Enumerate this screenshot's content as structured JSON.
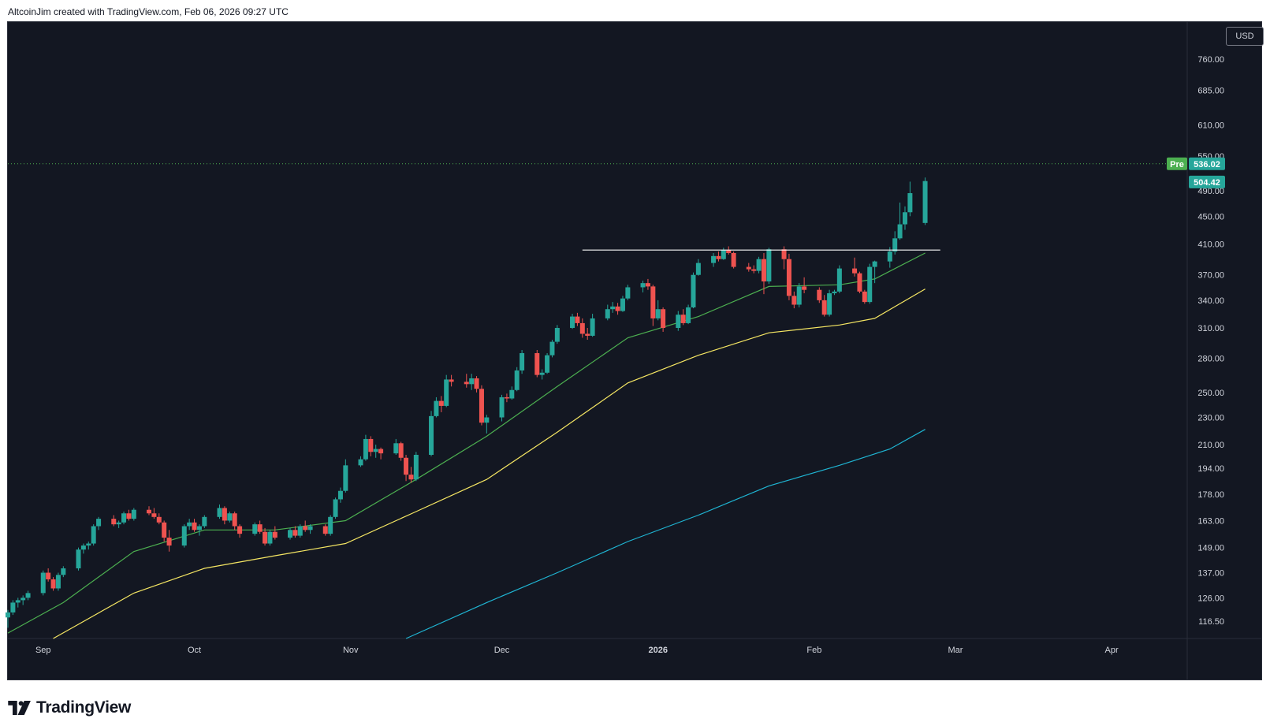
{
  "header": {
    "caption": "AltcoinJim created with TradingView.com, Feb 06, 2026 09:27 UTC"
  },
  "currency": "USD",
  "footer": {
    "brand": "TradingView",
    "icon": "tradingview-logo-icon"
  },
  "colors": {
    "background": "#131722",
    "up": "#26a69a",
    "down": "#ef5350",
    "ma_short": "#4caf50",
    "ma_mid": "#f5e663",
    "ma_long": "#1fb4d2",
    "resistance": "#ffffff",
    "axis_text": "#d1d4dc"
  },
  "chart_data": {
    "type": "candlestick",
    "scale": "log",
    "ylim": [
      110,
      860
    ],
    "y_ticks": [
      760,
      685,
      610,
      550,
      490,
      450,
      410,
      370,
      340,
      310,
      280,
      250,
      230,
      210,
      194,
      178,
      163,
      149,
      137,
      126,
      116.5
    ],
    "y_tick_labels": [
      "760.00",
      "685.00",
      "610.00",
      "550.00",
      "490.00",
      "450.00",
      "410.00",
      "370.00",
      "340.00",
      "310.00",
      "280.00",
      "250.00",
      "230.00",
      "210.00",
      "194.00",
      "178.00",
      "163.00",
      "149.00",
      "137.00",
      "126.00",
      "116.50"
    ],
    "x_labels": [
      {
        "label": "Sep",
        "date": "2025-09-01"
      },
      {
        "label": "Oct",
        "date": "2025-10-01"
      },
      {
        "label": "Nov",
        "date": "2025-11-01"
      },
      {
        "label": "Dec",
        "date": "2025-12-01"
      },
      {
        "label": "2026",
        "date": "2026-01-01"
      },
      {
        "label": "Feb",
        "date": "2026-02-01"
      },
      {
        "label": "Mar",
        "date": "2026-03-01"
      },
      {
        "label": "Apr",
        "date": "2026-04-01"
      }
    ],
    "x_range": [
      "2025-08-25",
      "2026-04-16"
    ],
    "candles": [
      [
        "2025-08-25",
        118,
        121,
        114,
        120
      ],
      [
        "2025-08-26",
        120,
        125,
        119,
        124
      ],
      [
        "2025-08-27",
        124,
        126,
        122,
        125
      ],
      [
        "2025-08-28",
        125,
        127,
        123,
        126
      ],
      [
        "2025-08-29",
        126,
        129,
        125,
        128
      ],
      [
        "2025-09-01",
        128,
        138,
        127,
        137
      ],
      [
        "2025-09-02",
        137,
        139,
        133,
        134
      ],
      [
        "2025-09-03",
        134,
        135,
        129,
        130
      ],
      [
        "2025-09-04",
        130,
        137,
        129,
        136
      ],
      [
        "2025-09-05",
        136,
        140,
        135,
        139
      ],
      [
        "2025-09-08",
        139,
        149,
        138,
        148
      ],
      [
        "2025-09-09",
        148,
        151,
        146,
        150
      ],
      [
        "2025-09-10",
        150,
        152,
        148,
        151
      ],
      [
        "2025-09-11",
        151,
        161,
        150,
        160
      ],
      [
        "2025-09-12",
        160,
        165,
        158,
        164
      ],
      [
        "2025-09-15",
        164,
        166,
        160,
        161
      ],
      [
        "2025-09-16",
        161,
        163,
        159,
        162
      ],
      [
        "2025-09-17",
        162,
        168,
        161,
        167
      ],
      [
        "2025-09-18",
        167,
        169,
        163,
        164
      ],
      [
        "2025-09-19",
        164,
        170,
        163,
        169
      ],
      [
        "2025-09-22",
        169,
        171,
        166,
        167
      ],
      [
        "2025-09-23",
        167,
        170,
        164,
        165
      ],
      [
        "2025-09-24",
        165,
        167,
        161,
        162
      ],
      [
        "2025-09-25",
        162,
        163,
        152,
        154
      ],
      [
        "2025-09-26",
        154,
        158,
        147,
        150
      ],
      [
        "2025-09-29",
        150,
        161,
        149,
        160
      ],
      [
        "2025-09-30",
        160,
        164,
        158,
        162
      ],
      [
        "2025-10-01",
        162,
        164,
        157,
        158
      ],
      [
        "2025-10-02",
        158,
        161,
        155,
        160
      ],
      [
        "2025-10-03",
        160,
        166,
        159,
        165
      ],
      [
        "2025-10-06",
        165,
        172,
        164,
        170
      ],
      [
        "2025-10-07",
        170,
        171,
        161,
        163
      ],
      [
        "2025-10-08",
        163,
        168,
        162,
        167
      ],
      [
        "2025-10-09",
        167,
        168,
        158,
        160
      ],
      [
        "2025-10-10",
        160,
        161,
        154,
        156
      ],
      [
        "2025-10-13",
        156,
        162,
        155,
        161
      ],
      [
        "2025-10-14",
        161,
        163,
        156,
        157
      ],
      [
        "2025-10-15",
        157,
        159,
        150,
        151
      ],
      [
        "2025-10-16",
        151,
        158,
        150,
        157
      ],
      [
        "2025-10-17",
        157,
        160,
        153,
        154
      ],
      [
        "2025-10-20",
        154,
        159,
        153,
        158
      ],
      [
        "2025-10-21",
        158,
        160,
        154,
        155
      ],
      [
        "2025-10-22",
        155,
        161,
        154,
        160
      ],
      [
        "2025-10-23",
        160,
        163,
        157,
        158
      ],
      [
        "2025-10-24",
        158,
        161,
        156,
        160
      ],
      [
        "2025-10-27",
        160,
        161,
        155,
        156
      ],
      [
        "2025-10-28",
        156,
        166,
        155,
        165
      ],
      [
        "2025-10-29",
        165,
        176,
        164,
        175
      ],
      [
        "2025-10-30",
        175,
        182,
        173,
        180
      ],
      [
        "2025-10-31",
        180,
        200,
        179,
        196
      ],
      [
        "2025-11-03",
        196,
        202,
        195,
        200
      ],
      [
        "2025-11-04",
        200,
        217,
        199,
        214
      ],
      [
        "2025-11-05",
        214,
        216,
        202,
        205
      ],
      [
        "2025-11-06",
        205,
        210,
        201,
        207
      ],
      [
        "2025-11-07",
        207,
        208,
        200,
        204
      ],
      [
        "2025-11-10",
        204,
        214,
        203,
        211
      ],
      [
        "2025-11-11",
        211,
        212,
        199,
        201
      ],
      [
        "2025-11-12",
        201,
        203,
        186,
        190
      ],
      [
        "2025-11-13",
        190,
        195,
        185,
        187
      ],
      [
        "2025-11-14",
        187,
        205,
        186,
        203
      ],
      [
        "2025-11-17",
        203,
        235,
        202,
        231
      ],
      [
        "2025-11-18",
        231,
        246,
        230,
        243
      ],
      [
        "2025-11-19",
        243,
        247,
        234,
        239
      ],
      [
        "2025-11-20",
        239,
        265,
        238,
        261
      ],
      [
        "2025-11-21",
        261,
        265,
        255,
        259
      ],
      [
        "2025-11-24",
        259,
        266,
        254,
        257
      ],
      [
        "2025-11-25",
        257,
        266,
        252,
        262
      ],
      [
        "2025-11-26",
        262,
        264,
        250,
        253
      ],
      [
        "2025-11-27",
        253,
        256,
        224,
        226
      ],
      [
        "2025-11-28",
        226,
        232,
        218,
        230
      ],
      [
        "2025-12-01",
        230,
        248,
        227,
        246
      ],
      [
        "2025-12-02",
        246,
        249,
        242,
        245
      ],
      [
        "2025-12-03",
        245,
        255,
        244,
        252
      ],
      [
        "2025-12-04",
        252,
        272,
        251,
        269
      ],
      [
        "2025-12-05",
        269,
        288,
        266,
        285
      ],
      [
        "2025-12-08",
        285,
        288,
        263,
        265
      ],
      [
        "2025-12-09",
        265,
        270,
        261,
        267
      ],
      [
        "2025-12-10",
        267,
        285,
        266,
        283
      ],
      [
        "2025-12-11",
        283,
        298,
        281,
        296
      ],
      [
        "2025-12-12",
        296,
        313,
        294,
        310
      ],
      [
        "2025-12-15",
        310,
        325,
        309,
        322
      ],
      [
        "2025-12-16",
        322,
        326,
        312,
        315
      ],
      [
        "2025-12-17",
        315,
        320,
        300,
        304
      ],
      [
        "2025-12-18",
        304,
        310,
        298,
        302
      ],
      [
        "2025-12-19",
        302,
        325,
        301,
        320
      ],
      [
        "2025-12-22",
        320,
        335,
        318,
        330
      ],
      [
        "2025-12-23",
        330,
        338,
        326,
        333
      ],
      [
        "2025-12-24",
        333,
        337,
        324,
        328
      ],
      [
        "2025-12-25",
        328,
        345,
        327,
        342
      ],
      [
        "2025-12-26",
        342,
        358,
        340,
        355
      ],
      [
        "2025-12-29",
        355,
        363,
        349,
        360
      ],
      [
        "2025-12-30",
        360,
        365,
        352,
        356
      ],
      [
        "2025-12-31",
        356,
        358,
        312,
        320
      ],
      [
        "2026-01-01",
        320,
        340,
        318,
        330
      ],
      [
        "2026-01-02",
        330,
        332,
        306,
        310
      ],
      [
        "2026-01-05",
        310,
        328,
        307,
        324
      ],
      [
        "2026-01-06",
        324,
        330,
        313,
        315
      ],
      [
        "2026-01-07",
        315,
        335,
        314,
        332
      ],
      [
        "2026-01-08",
        332,
        373,
        331,
        370
      ],
      [
        "2026-01-09",
        370,
        390,
        369,
        385
      ],
      [
        "2026-01-12",
        385,
        398,
        380,
        394
      ],
      [
        "2026-01-13",
        394,
        400,
        387,
        390
      ],
      [
        "2026-01-14",
        390,
        405,
        389,
        402
      ],
      [
        "2026-01-15",
        402,
        407,
        396,
        398
      ],
      [
        "2026-01-16",
        398,
        400,
        378,
        380
      ],
      [
        "2026-01-19",
        380,
        385,
        374,
        377
      ],
      [
        "2026-01-20",
        377,
        382,
        372,
        375
      ],
      [
        "2026-01-21",
        375,
        393,
        372,
        390
      ],
      [
        "2026-01-22",
        390,
        398,
        347,
        362
      ],
      [
        "2026-01-23",
        362,
        405,
        359,
        403
      ],
      [
        "2026-01-26",
        403,
        407,
        377,
        390
      ],
      [
        "2026-01-27",
        390,
        397,
        340,
        345
      ],
      [
        "2026-01-28",
        345,
        350,
        331,
        335
      ],
      [
        "2026-01-29",
        335,
        360,
        332,
        356
      ],
      [
        "2026-01-30",
        356,
        367,
        348,
        352
      ],
      [
        "2026-02-02",
        352,
        355,
        337,
        340
      ],
      [
        "2026-02-03",
        340,
        346,
        322,
        324
      ],
      [
        "2026-02-04",
        324,
        352,
        322,
        348
      ],
      [
        "2026-02-05",
        348,
        352,
        346,
        350
      ],
      [
        "2026-02-06",
        350,
        382,
        348,
        378
      ],
      [
        "2026-02-09",
        378,
        392,
        368,
        372
      ],
      [
        "2026-02-10",
        372,
        374,
        348,
        350
      ],
      [
        "2026-02-11",
        350,
        352,
        336,
        338
      ],
      [
        "2026-02-12",
        338,
        384,
        336,
        380
      ],
      [
        "2026-02-13",
        380,
        388,
        360,
        387
      ],
      [
        "2026-02-16",
        387,
        406,
        379,
        400
      ],
      [
        "2026-02-17",
        400,
        428,
        396,
        418
      ],
      [
        "2026-02-18",
        418,
        471,
        416,
        438
      ],
      [
        "2026-02-19",
        438,
        465,
        430,
        456
      ],
      [
        "2026-02-20",
        456,
        505,
        450,
        486
      ],
      [
        "2026-02-23",
        440,
        512,
        437,
        506
      ]
    ],
    "moving_averages": [
      {
        "name": "MA short",
        "color": "#4caf50",
        "points": [
          [
            "2025-08-25",
            112
          ],
          [
            "2025-09-05",
            124
          ],
          [
            "2025-09-19",
            147
          ],
          [
            "2025-10-03",
            158
          ],
          [
            "2025-10-17",
            158
          ],
          [
            "2025-10-31",
            163
          ],
          [
            "2025-11-14",
            187
          ],
          [
            "2025-11-28",
            216
          ],
          [
            "2025-12-12",
            255
          ],
          [
            "2025-12-26",
            300
          ],
          [
            "2026-01-09",
            322
          ],
          [
            "2026-01-23",
            356
          ],
          [
            "2026-02-06",
            358
          ],
          [
            "2026-02-13",
            365
          ],
          [
            "2026-02-23",
            398
          ]
        ]
      },
      {
        "name": "MA mid",
        "color": "#f5e663",
        "points": [
          [
            "2025-09-03",
            110
          ],
          [
            "2025-09-19",
            128
          ],
          [
            "2025-10-03",
            139
          ],
          [
            "2025-10-17",
            145
          ],
          [
            "2025-10-31",
            151
          ],
          [
            "2025-11-14",
            168
          ],
          [
            "2025-11-28",
            187
          ],
          [
            "2025-12-12",
            219
          ],
          [
            "2025-12-26",
            258
          ],
          [
            "2026-01-09",
            283
          ],
          [
            "2026-01-23",
            305
          ],
          [
            "2026-02-06",
            313
          ],
          [
            "2026-02-13",
            320
          ],
          [
            "2026-02-23",
            353
          ]
        ]
      },
      {
        "name": "MA long",
        "color": "#1fb4d2",
        "points": [
          [
            "2025-11-12",
            110
          ],
          [
            "2025-11-28",
            124
          ],
          [
            "2025-12-12",
            137
          ],
          [
            "2025-12-26",
            152
          ],
          [
            "2026-01-09",
            166
          ],
          [
            "2026-01-23",
            183
          ],
          [
            "2026-02-06",
            196
          ],
          [
            "2026-02-16",
            207
          ],
          [
            "2026-02-23",
            221
          ]
        ]
      }
    ],
    "resistance_line": {
      "value": 402,
      "from": "2025-12-17",
      "to": "2026-02-26"
    },
    "last_price": {
      "value": 504.42,
      "label": "504.42"
    },
    "premarket": {
      "label": "Pre",
      "value": 536.02,
      "value_label": "536.02"
    }
  }
}
